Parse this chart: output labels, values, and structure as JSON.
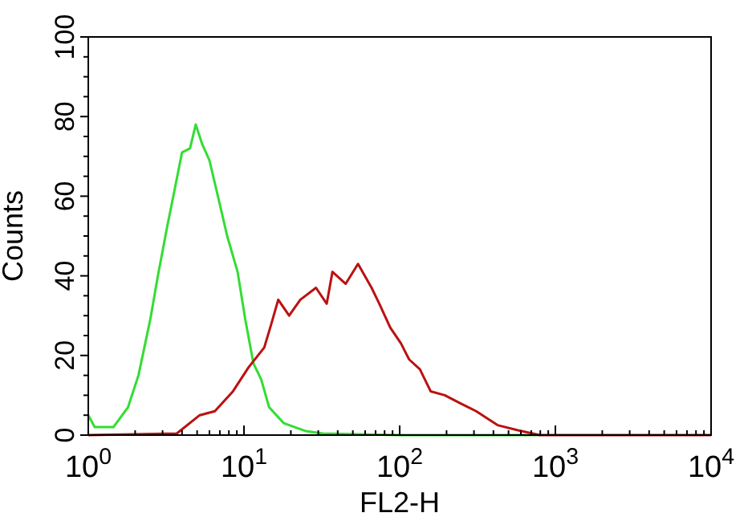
{
  "chart_data": {
    "type": "line",
    "xlabel": "FL2-H",
    "ylabel": "Counts",
    "log": "x",
    "xlim": [
      1,
      10000
    ],
    "ylim": [
      0,
      100
    ],
    "xticks": [
      {
        "value": 1,
        "label": "10$^{0}$"
      },
      {
        "value": 2,
        "label": null
      },
      {
        "value": 3,
        "label": null
      },
      {
        "value": 4,
        "label": null
      },
      {
        "value": 5,
        "label": null
      },
      {
        "value": 6,
        "label": null
      },
      {
        "value": 7,
        "label": null
      },
      {
        "value": 8,
        "label": null
      },
      {
        "value": 9,
        "label": null
      },
      {
        "value": 10,
        "label": "10$^{1}$"
      },
      {
        "value": 20,
        "label": null
      },
      {
        "value": 30,
        "label": null
      },
      {
        "value": 40,
        "label": null
      },
      {
        "value": 50,
        "label": null
      },
      {
        "value": 60,
        "label": null
      },
      {
        "value": 70,
        "label": null
      },
      {
        "value": 80,
        "label": null
      },
      {
        "value": 90,
        "label": null
      },
      {
        "value": 100,
        "label": "10$^{2}$"
      },
      {
        "value": 200,
        "label": null
      },
      {
        "value": 300,
        "label": null
      },
      {
        "value": 400,
        "label": null
      },
      {
        "value": 500,
        "label": null
      },
      {
        "value": 600,
        "label": null
      },
      {
        "value": 700,
        "label": null
      },
      {
        "value": 800,
        "label": null
      },
      {
        "value": 900,
        "label": null
      },
      {
        "value": 1000,
        "label": "10$^{3}$"
      },
      {
        "value": 2000,
        "label": null
      },
      {
        "value": 3000,
        "label": null
      },
      {
        "value": 4000,
        "label": null
      },
      {
        "value": 5000,
        "label": null
      },
      {
        "value": 6000,
        "label": null
      },
      {
        "value": 7000,
        "label": null
      },
      {
        "value": 8000,
        "label": null
      },
      {
        "value": 9000,
        "label": null
      },
      {
        "value": 10000,
        "label": "10$^{4}$"
      }
    ],
    "yticks": [
      0,
      {
        "value": 5,
        "label": null
      },
      {
        "value": 10,
        "label": null
      },
      {
        "value": 15,
        "label": null
      },
      20,
      {
        "value": 25,
        "label": null
      },
      {
        "value": 30,
        "label": null
      },
      {
        "value": 35,
        "label": null
      },
      40,
      {
        "value": 45,
        "label": null
      },
      {
        "value": 50,
        "label": null
      },
      {
        "value": 55,
        "label": null
      },
      60,
      {
        "value": 65,
        "label": null
      },
      {
        "value": 70,
        "label": null
      },
      {
        "value": 75,
        "label": null
      },
      80,
      {
        "value": 85,
        "label": null
      },
      {
        "value": 90,
        "label": null
      },
      {
        "value": 95,
        "label": null
      },
      100
    ],
    "grid": false,
    "marker": "none",
    "line_style": "solid",
    "series": [
      {
        "color": "#33dd33",
        "x": [
          1,
          1.1,
          1.45,
          1.8,
          2.1,
          2.5,
          2.8,
          3.2,
          3.6,
          4.0,
          4.5,
          4.9,
          5.4,
          6.0,
          6.8,
          7.8,
          9.1,
          10.2,
          11.5,
          12.9,
          14.5,
          18,
          25,
          32,
          100,
          800
        ],
        "values": [
          5,
          2,
          2,
          7,
          15,
          29,
          40,
          52,
          62,
          71,
          72,
          78,
          73,
          69,
          60,
          50,
          41,
          29,
          18,
          14,
          7,
          3,
          1,
          0.4,
          0,
          0
        ]
      },
      {
        "color": "#bb1111",
        "x": [
          1,
          3.7,
          5.2,
          6.5,
          8.5,
          10.7,
          13.5,
          15,
          16.6,
          19.5,
          23,
          29,
          34,
          37,
          45,
          54,
          66,
          74,
          87,
          102,
          115,
          135,
          158,
          195,
          245,
          310,
          425,
          575,
          795,
          10000
        ],
        "values": [
          0,
          0.4,
          5,
          6,
          11,
          17,
          22,
          28,
          34,
          30,
          34,
          37,
          33,
          41,
          38,
          43,
          37,
          33,
          27,
          23,
          19,
          16.5,
          11,
          10,
          8,
          6,
          2.5,
          1.2,
          0,
          0
        ]
      }
    ]
  }
}
